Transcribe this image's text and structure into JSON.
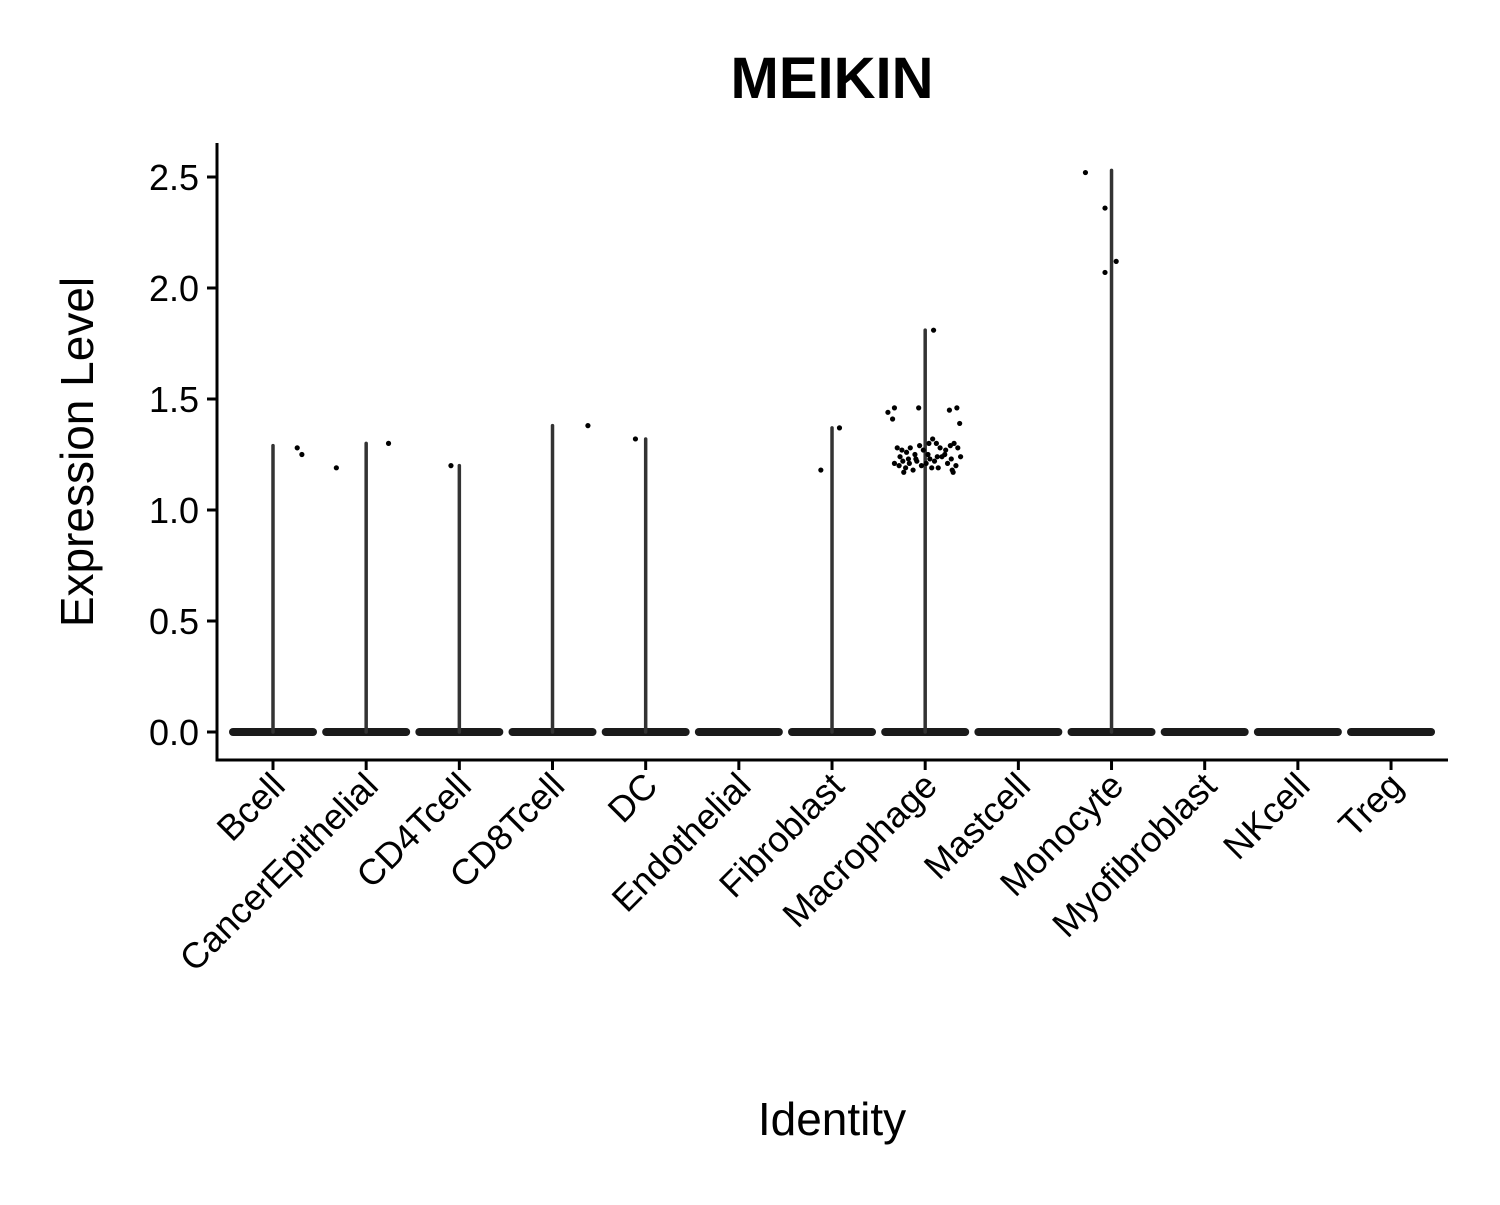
{
  "chart_data": {
    "type": "violin",
    "title": "MEIKIN",
    "xlabel": "Identity",
    "ylabel": "Expression Level",
    "ylim": [
      -0.12,
      2.65
    ],
    "yticks": [
      "0.0",
      "0.5",
      "1.0",
      "1.5",
      "2.0",
      "2.5"
    ],
    "ytick_values": [
      0,
      0.5,
      1.0,
      1.5,
      2.0,
      2.5
    ],
    "grid": false,
    "legend": "none",
    "categories": [
      "Bcell",
      "CancerEpithelial",
      "CD4Tcell",
      "CD8Tcell",
      "DC",
      "Endothelial",
      "Fibroblast",
      "Macrophage",
      "Mastcell",
      "Monocyte",
      "Myofibroblast",
      "NKcell",
      "Treg"
    ],
    "series": [
      {
        "category": "Bcell",
        "max": 1.29,
        "points": [
          [
            0.26,
            1.28
          ],
          [
            0.31,
            1.25
          ]
        ]
      },
      {
        "category": "CancerEpithelial",
        "max": 1.3,
        "points": [
          [
            -0.32,
            1.19
          ],
          [
            0.24,
            1.3
          ]
        ]
      },
      {
        "category": "CD4Tcell",
        "max": 1.2,
        "points": [
          [
            -0.09,
            1.2
          ]
        ]
      },
      {
        "category": "CD8Tcell",
        "max": 1.38,
        "points": [
          [
            0.38,
            1.38
          ]
        ]
      },
      {
        "category": "DC",
        "max": 1.32,
        "points": [
          [
            -0.11,
            1.32
          ]
        ]
      },
      {
        "category": "Endothelial",
        "max": 0,
        "points": []
      },
      {
        "category": "Fibroblast",
        "max": 1.37,
        "points": [
          [
            -0.12,
            1.18
          ],
          [
            0.08,
            1.37
          ]
        ]
      },
      {
        "category": "Macrophage",
        "max": 1.81,
        "points": [
          [
            0.09,
            1.81
          ],
          [
            -0.4,
            1.44
          ],
          [
            -0.33,
            1.46
          ],
          [
            -0.35,
            1.41
          ],
          [
            -0.07,
            1.46
          ],
          [
            0.26,
            1.45
          ],
          [
            0.34,
            1.46
          ],
          [
            0.37,
            1.39
          ],
          [
            -0.3,
            1.28
          ],
          [
            -0.25,
            1.27
          ],
          [
            -0.2,
            1.26
          ],
          [
            -0.16,
            1.28
          ],
          [
            -0.11,
            1.25
          ],
          [
            -0.06,
            1.29
          ],
          [
            -0.02,
            1.27
          ],
          [
            0.04,
            1.3
          ],
          [
            0.08,
            1.32
          ],
          [
            0.12,
            1.3
          ],
          [
            0.16,
            1.28
          ],
          [
            0.22,
            1.27
          ],
          [
            0.27,
            1.29
          ],
          [
            0.31,
            1.3
          ],
          [
            0.35,
            1.28
          ],
          [
            -0.33,
            1.21
          ],
          [
            -0.28,
            1.2
          ],
          [
            -0.24,
            1.22
          ],
          [
            -0.21,
            1.19
          ],
          [
            -0.17,
            1.21
          ],
          [
            -0.13,
            1.18
          ],
          [
            -0.09,
            1.22
          ],
          [
            -0.04,
            1.2
          ],
          [
            0.01,
            1.21
          ],
          [
            0.05,
            1.23
          ],
          [
            0.1,
            1.22
          ],
          [
            0.14,
            1.19
          ],
          [
            0.18,
            1.24
          ],
          [
            0.24,
            1.21
          ],
          [
            0.29,
            1.18
          ],
          [
            0.33,
            1.2
          ],
          [
            0.38,
            1.24
          ],
          [
            -0.27,
            1.24
          ],
          [
            -0.18,
            1.23
          ],
          [
            -0.1,
            1.23
          ],
          [
            0.03,
            1.25
          ],
          [
            0.13,
            1.24
          ],
          [
            0.21,
            1.25
          ],
          [
            0.28,
            1.23
          ],
          [
            -0.23,
            1.17
          ],
          [
            0.3,
            1.17
          ],
          [
            0.07,
            1.19
          ]
        ]
      },
      {
        "category": "Mastcell",
        "max": 0,
        "points": []
      },
      {
        "category": "Monocyte",
        "max": 2.53,
        "points": [
          [
            -0.28,
            2.52
          ],
          [
            -0.07,
            2.36
          ],
          [
            -0.07,
            2.07
          ],
          [
            0.05,
            2.12
          ]
        ]
      },
      {
        "category": "Myofibroblast",
        "max": 0,
        "points": []
      },
      {
        "category": "NKcell",
        "max": 0,
        "points": []
      },
      {
        "category": "Treg",
        "max": 0,
        "points": []
      }
    ]
  }
}
